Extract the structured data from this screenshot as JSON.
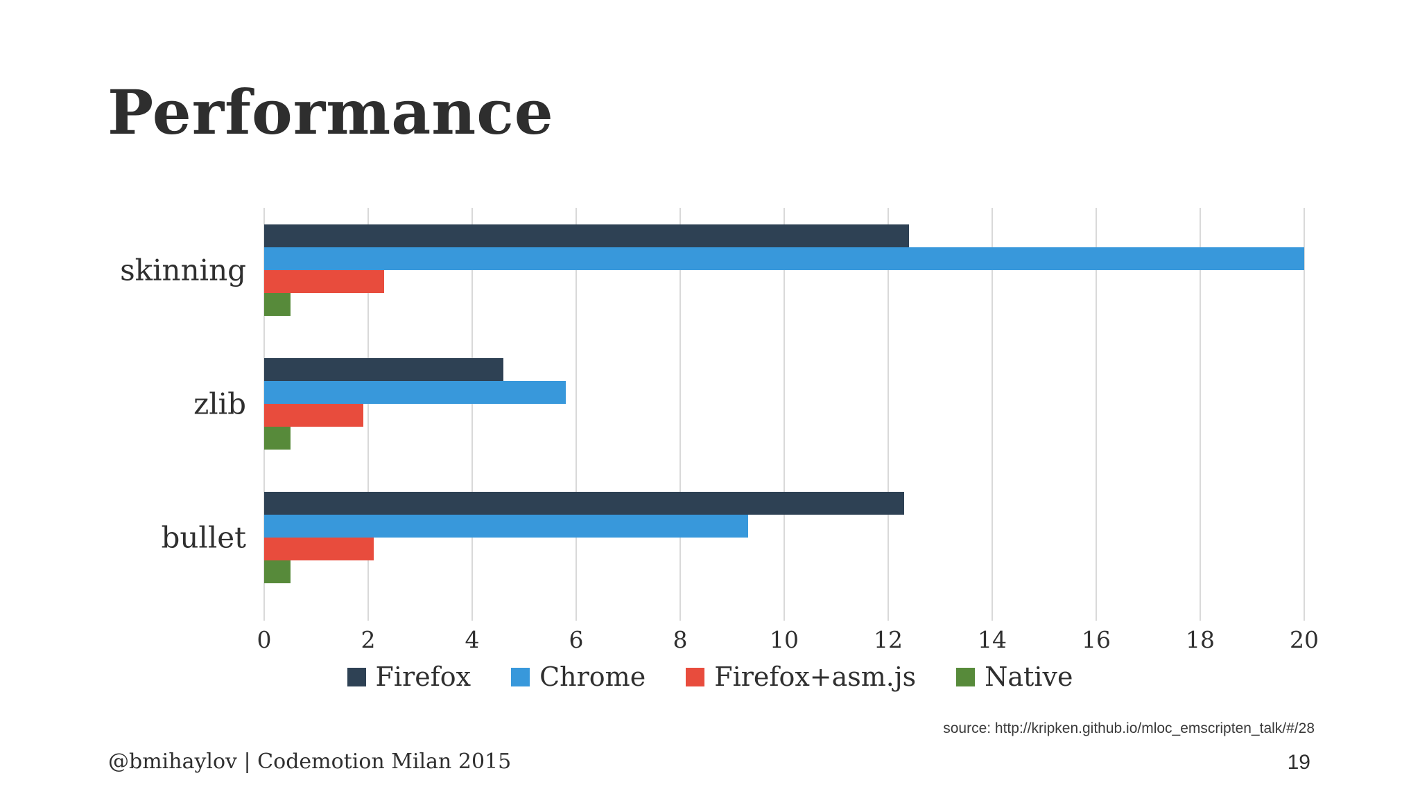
{
  "slide": {
    "title": "Performance",
    "footer_left": "@bmihaylov | Codemotion Milan 2015",
    "page_number": "19",
    "source_note": "source: http://kripken.github.io/mloc_emscripten_talk/#/28"
  },
  "colors": {
    "firefox": "#2e4154",
    "chrome": "#3898db",
    "firefox_asmjs": "#e84c3d",
    "native": "#578a3a",
    "gridline": "#d9d9d9",
    "text": "#2f2f2f",
    "background": "#ffffff"
  },
  "chart_data": {
    "type": "bar",
    "orientation": "horizontal",
    "title": "",
    "xlabel": "",
    "ylabel": "",
    "categories": [
      "skinning",
      "zlib",
      "bullet"
    ],
    "series": [
      {
        "name": "Firefox",
        "color": "#2e4154",
        "values": [
          12.4,
          4.6,
          12.3
        ]
      },
      {
        "name": "Chrome",
        "color": "#3898db",
        "values": [
          20.0,
          5.8,
          9.3
        ]
      },
      {
        "name": "Firefox+asm.js",
        "color": "#e84c3d",
        "values": [
          2.3,
          1.9,
          2.1
        ]
      },
      {
        "name": "Native",
        "color": "#578a3a",
        "values": [
          0.5,
          0.5,
          0.5
        ]
      }
    ],
    "xlim": [
      0,
      20
    ],
    "xticks": [
      0,
      2,
      4,
      6,
      8,
      10,
      12,
      14,
      16,
      18,
      20
    ],
    "grid": "vertical-gridlines",
    "legend_position": "bottom"
  }
}
